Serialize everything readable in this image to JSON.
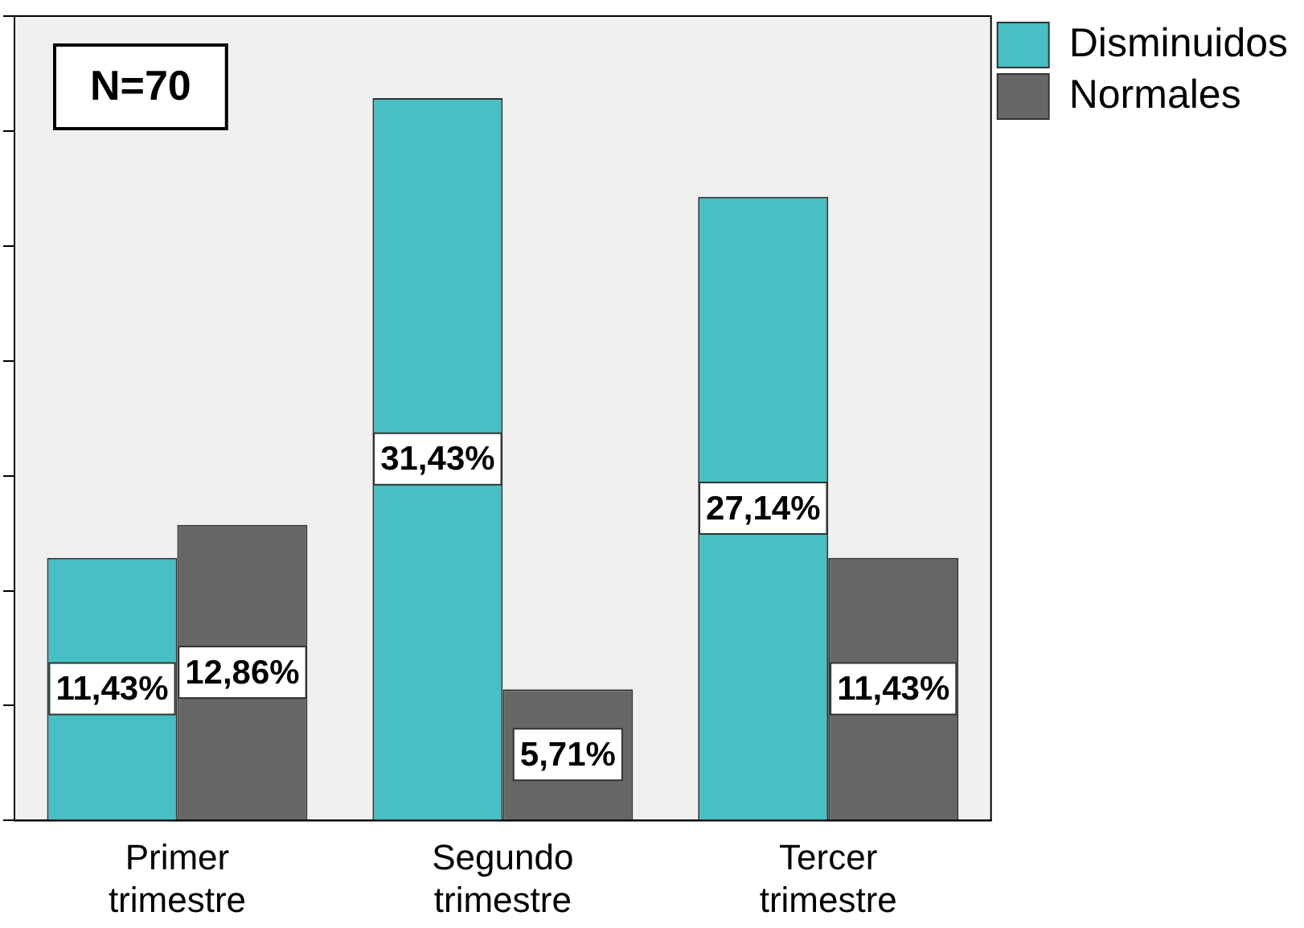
{
  "chart_data": {
    "type": "bar",
    "categories": [
      "Primer trimestre",
      "Segundo trimestre",
      "Tercer trimestre"
    ],
    "series": [
      {
        "name": "Disminuidos",
        "color": "#47bfc4",
        "values": [
          11.43,
          31.43,
          27.14
        ],
        "value_labels": [
          "11,43%",
          "31,43%",
          "27,14%"
        ]
      },
      {
        "name": "Normales",
        "color": "#666666",
        "values": [
          12.86,
          5.71,
          11.43
        ],
        "value_labels": [
          "12,86%",
          "5,71%",
          "11,43%"
        ]
      }
    ],
    "tick_labels": "x",
    "grid": false,
    "legend": "top right",
    "annotations": [
      "N=70"
    ]
  }
}
